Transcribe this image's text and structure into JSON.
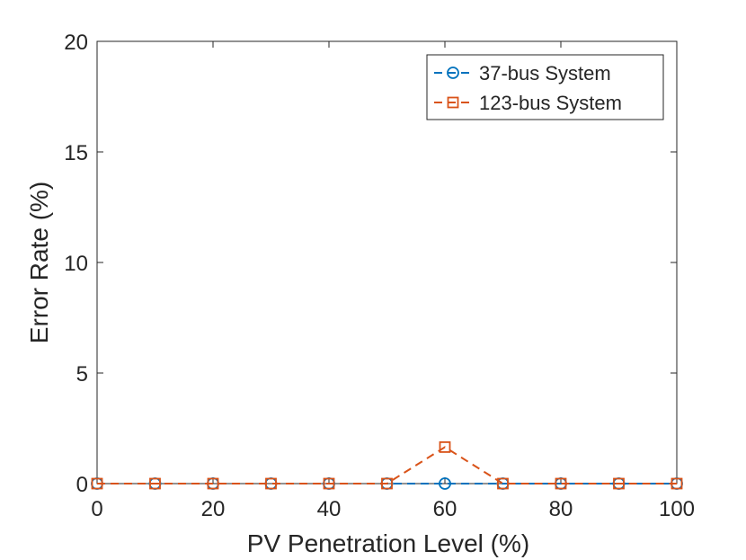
{
  "chart_data": {
    "type": "line",
    "title": "",
    "xlabel": "PV Penetration Level (%)",
    "ylabel": "Error Rate (%)",
    "xlim": [
      0,
      100
    ],
    "ylim": [
      0,
      20
    ],
    "xticks": [
      0,
      20,
      40,
      60,
      80,
      100
    ],
    "yticks": [
      0,
      5,
      10,
      15,
      20
    ],
    "xtick_labels": [
      "0",
      "20",
      "40",
      "60",
      "80",
      "100"
    ],
    "ytick_labels": [
      "0",
      "5",
      "10",
      "15",
      "20"
    ],
    "grid": false,
    "legend_position": "top-right",
    "x": [
      0,
      10,
      20,
      30,
      40,
      50,
      60,
      70,
      80,
      90,
      100
    ],
    "series": [
      {
        "name": "37-bus System",
        "values": [
          0,
          0,
          0,
          0,
          0,
          0,
          0,
          0,
          0,
          0,
          0
        ],
        "color": "#0072BD",
        "marker": "circle",
        "line_style": "dashed"
      },
      {
        "name": "123-bus System",
        "values": [
          0,
          0,
          0,
          0,
          0,
          0,
          1.65,
          0,
          0,
          0,
          0
        ],
        "color": "#D95319",
        "marker": "square",
        "line_style": "dashed"
      }
    ]
  }
}
